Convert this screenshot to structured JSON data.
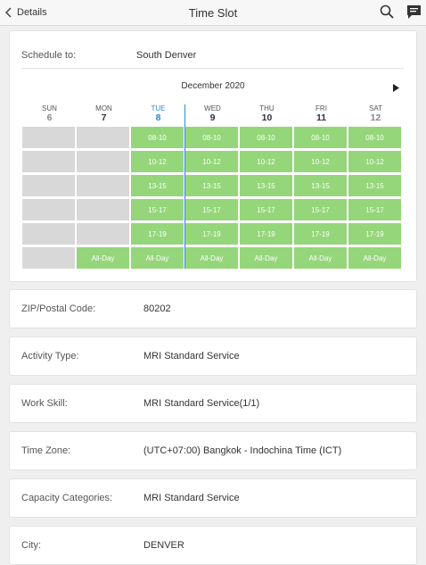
{
  "header": {
    "back_label": "Details",
    "title": "Time Slot",
    "search_icon": "search-icon",
    "chat_icon": "chat-icon"
  },
  "schedule": {
    "label": "Schedule to:",
    "value": "South Denver"
  },
  "calendar": {
    "month": "December 2020",
    "days": [
      {
        "name": "SUN",
        "num": "6",
        "state": "weekend"
      },
      {
        "name": "MON",
        "num": "7",
        "state": "normal"
      },
      {
        "name": "TUE",
        "num": "8",
        "state": "today"
      },
      {
        "name": "WED",
        "num": "9",
        "state": "normal"
      },
      {
        "name": "THU",
        "num": "10",
        "state": "normal"
      },
      {
        "name": "FRI",
        "num": "11",
        "state": "normal"
      },
      {
        "name": "SAT",
        "num": "12",
        "state": "weekend"
      }
    ],
    "rows": [
      [
        "",
        "",
        "08-10",
        "08-10",
        "08-10",
        "08-10",
        "08-10"
      ],
      [
        "",
        "",
        "10-12",
        "10-12",
        "10-12",
        "10-12",
        "10-12"
      ],
      [
        "",
        "",
        "13-15",
        "13-15",
        "13-15",
        "13-15",
        "13-15"
      ],
      [
        "",
        "",
        "15-17",
        "15-17",
        "15-17",
        "15-17",
        "15-17"
      ],
      [
        "",
        "",
        "17-19",
        "17-19",
        "17-19",
        "17-19",
        "17-19"
      ],
      [
        "",
        "All-Day",
        "All-Day",
        "All-Day",
        "All-Day",
        "All-Day",
        "All-Day"
      ]
    ],
    "colors": {
      "available": "#95d67a",
      "unavailable": "#d8d8d8",
      "today": "#2f8ad6"
    }
  },
  "fields": [
    {
      "label": "ZIP/Postal Code:",
      "value": "80202"
    },
    {
      "label": "Activity Type:",
      "value": "MRI Standard Service"
    },
    {
      "label": "Work Skill:",
      "value": "MRI Standard Service(1/1)"
    },
    {
      "label": "Time Zone:",
      "value": "(UTC+07:00) Bangkok - Indochina Time (ICT)"
    },
    {
      "label": "Capacity Categories:",
      "value": "MRI Standard Service"
    },
    {
      "label": "City:",
      "value": "DENVER"
    }
  ]
}
